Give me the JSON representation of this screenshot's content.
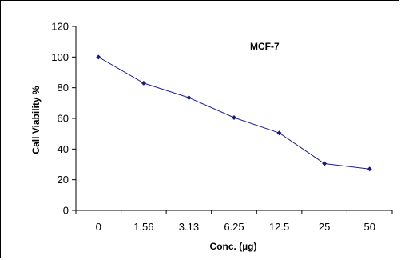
{
  "chart_data": {
    "type": "line",
    "title": "",
    "annotation": "MCF-7",
    "xlabel": "Conc. (µg)",
    "ylabel": "Call Viability %",
    "categories": [
      "0",
      "1.56",
      "3.13",
      "6.25",
      "12.5",
      "25",
      "50"
    ],
    "series": [
      {
        "name": "MCF-7",
        "values": [
          100,
          83,
          73.5,
          60.5,
          50.5,
          30.5,
          27
        ]
      }
    ],
    "ylim": [
      0,
      120
    ],
    "yticks": [
      0,
      20,
      40,
      60,
      80,
      100,
      120
    ],
    "grid": false,
    "legend": "none",
    "colors": {
      "line": "#1F1F8F",
      "marker": "#1A1A7A",
      "axis": "#000000"
    }
  }
}
